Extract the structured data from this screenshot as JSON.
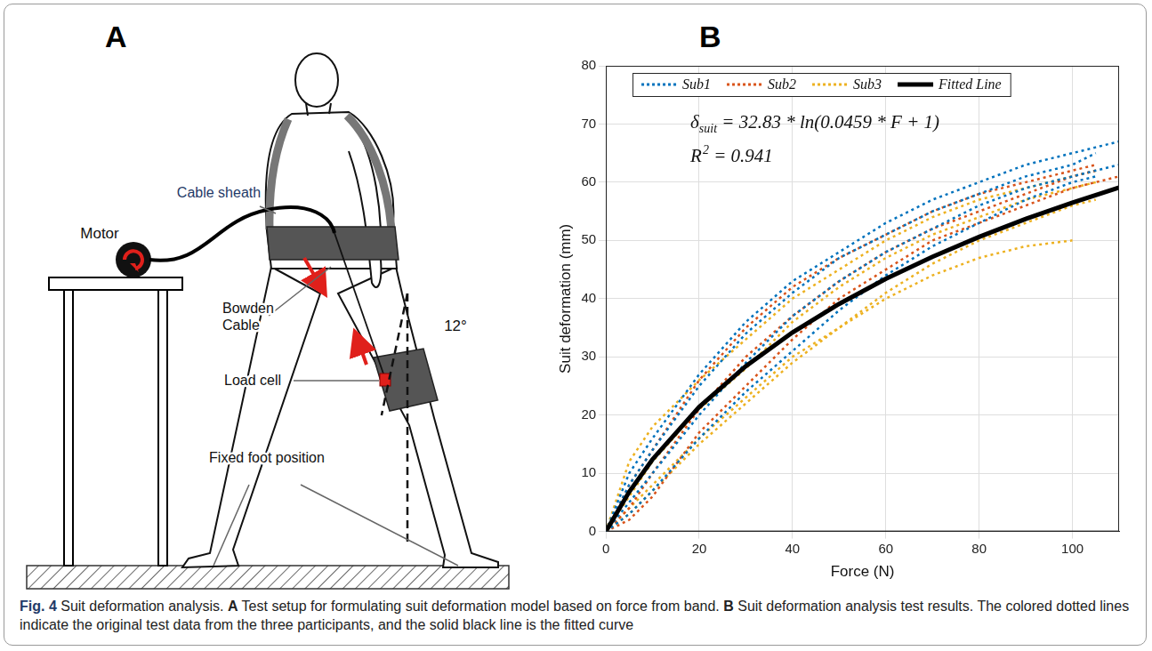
{
  "chart_data": {
    "type": "line",
    "panel_label": "B",
    "x_label": "Force (N)",
    "y_label": "Suit deformation (mm)",
    "xlim": [
      0,
      110
    ],
    "xticks": [
      0,
      20,
      40,
      60,
      80,
      100
    ],
    "ylim": [
      0,
      80
    ],
    "yticks": [
      0,
      10,
      20,
      30,
      40,
      50,
      60,
      70,
      80
    ],
    "grid": true,
    "legend": "top",
    "annotations": [
      {
        "text": "δ",
        "subscript": "suit",
        "after": " = 32.83 * ln(0.0459 * F + 1)"
      },
      {
        "text": "R",
        "superscript": "2",
        "after": " = 0.941"
      }
    ],
    "x": [
      0,
      5,
      10,
      20,
      30,
      40,
      50,
      60,
      70,
      80,
      90,
      100,
      105,
      110
    ],
    "series": [
      {
        "name": "Sub1",
        "color": "#0072BD",
        "line_style": "dotted",
        "trials": [
          [
            0,
            10,
            16,
            27,
            36,
            43,
            48,
            53,
            57,
            60,
            63,
            65,
            66,
            67
          ],
          [
            0,
            8,
            14,
            25,
            34,
            41,
            47,
            51,
            55,
            58,
            61,
            63,
            65,
            null
          ],
          [
            0,
            5,
            10,
            20,
            29,
            37,
            43,
            48,
            52,
            56,
            59,
            61,
            62,
            63
          ],
          [
            0,
            3,
            7,
            16,
            24,
            31,
            38,
            44,
            49,
            53,
            57,
            60,
            61,
            null
          ]
        ]
      },
      {
        "name": "Sub2",
        "color": "#D95319",
        "line_style": "dotted",
        "trials": [
          [
            0,
            8,
            14,
            26,
            35,
            42,
            47,
            51,
            55,
            58,
            60,
            62,
            63,
            null
          ],
          [
            0,
            4,
            10,
            21,
            30,
            37,
            43,
            48,
            52,
            55,
            58,
            61,
            62,
            null
          ],
          [
            0,
            2,
            6,
            17,
            25,
            33,
            40,
            45,
            50,
            53,
            56,
            59,
            60,
            61
          ]
        ]
      },
      {
        "name": "Sub3",
        "color": "#EDB120",
        "line_style": "dotted",
        "trials": [
          [
            0,
            12,
            18,
            26,
            33,
            40,
            45,
            50,
            54,
            57,
            59,
            61,
            62,
            null
          ],
          [
            0,
            6,
            12,
            21,
            28,
            36,
            42,
            47,
            51,
            54,
            57,
            59,
            60,
            null
          ],
          [
            0,
            4,
            8,
            16,
            23,
            30,
            35,
            40,
            44,
            47,
            49,
            50,
            null,
            null
          ],
          [
            0,
            3,
            7,
            15,
            22,
            29,
            35,
            41,
            46,
            50,
            53,
            56,
            57,
            null
          ]
        ]
      },
      {
        "name": "Fitted Line",
        "color": "#000000",
        "line_style": "solid",
        "values": [
          0,
          6.8,
          12.4,
          21.4,
          28.4,
          34.2,
          39.1,
          43.4,
          47.2,
          50.6,
          53.7,
          56.5,
          57.8,
          59.1
        ]
      }
    ]
  },
  "diagram": {
    "panel_label": "A",
    "labels": {
      "motor": "Motor",
      "cable_sheath": "Cable sheath",
      "bowden_cable": "Bowden Cable",
      "load_cell": "Load cell",
      "fixed_foot": "Fixed foot position"
    },
    "angle": {
      "value": 12,
      "label": "12°"
    }
  },
  "caption": [
    {
      "text": "Fig. 4",
      "bold": true
    },
    {
      "text": "  Suit deformation analysis. ",
      "bold": false
    },
    {
      "text": "A",
      "bold": true
    },
    {
      "text": " Test setup for formulating suit deformation model based on force from band. ",
      "bold": false
    },
    {
      "text": "B",
      "bold": true
    },
    {
      "text": " Suit deformation analysis test results. The colored dotted lines indicate the original test data from the three participants, and the solid black line is the fitted curve",
      "bold": false
    }
  ]
}
